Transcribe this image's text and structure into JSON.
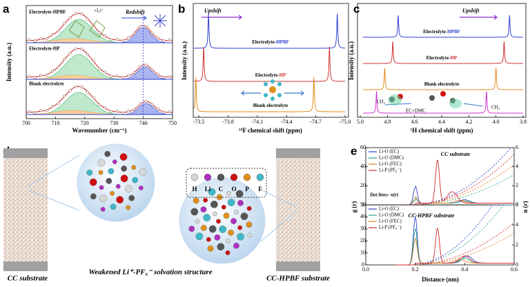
{
  "panel_a": {
    "label": "a",
    "ylabel": "Intensity (a.u.)",
    "xlabel": "Wavenumber (cm⁻¹)",
    "xticks": [
      "700",
      "710",
      "720",
      "730",
      "740",
      "750"
    ],
    "traces": [
      "Electrolyte-HPBF",
      "Electrolyte-HP",
      "Blank electrolyte"
    ],
    "annotation": "Redshift",
    "li_label": "+Li⁺"
  },
  "panel_b": {
    "label": "b",
    "ylabel": "Intensity (a.u.)",
    "xlabel": "¹⁹F chemical shift (ppm)",
    "xticks": [
      "-73.5",
      "-73.8",
      "-74.1",
      "-74.4",
      "-74.7",
      "-75.0"
    ],
    "annotation": "Upshift",
    "traces": [
      {
        "prefix": "Electrolyte-",
        "suffix": "HPBF"
      },
      {
        "prefix": "Electrolyte-",
        "suffix": "HP"
      },
      {
        "prefix": "Blank electrolyte"
      }
    ]
  },
  "panel_c": {
    "label": "c",
    "ylabel": "Intensity (a.u.)",
    "xlabel": "¹H chemical shift (ppm)",
    "xticks": [
      "5.0",
      "4.8",
      "4.6",
      "4.4",
      "4.2",
      "4.0",
      "3.8"
    ],
    "annotation": "Upshift",
    "traces": [
      {
        "prefix": "Electrolyte-",
        "suffix": "HPBF"
      },
      {
        "prefix": "Electrolyte-",
        "suffix": "HP"
      },
      {
        "prefix": "Blank electrolyte"
      }
    ],
    "ch2": "CH₂",
    "ch3": "CH₃",
    "mixture": "EC+DMC"
  },
  "panel_d": {
    "label": "d",
    "left_caption": "CC substrate",
    "right_caption": "CC-HPBF substrate",
    "center_caption": "Weakened Li⁺-PF₆⁻ solvation structure",
    "elements": [
      {
        "symbol": "H",
        "color": "#d8d8d8"
      },
      {
        "symbol": "Li",
        "color": "#b030c0"
      },
      {
        "symbol": "C",
        "color": "#555555"
      },
      {
        "symbol": "O",
        "color": "#d01010"
      },
      {
        "symbol": "P",
        "color": "#e0901a"
      },
      {
        "symbol": "F",
        "color": "#40b8c8"
      }
    ]
  },
  "panel_e": {
    "label": "e",
    "ylabel_left": "g (r)",
    "ylabel_right": "n (r)",
    "xlabel": "Distance (nm)",
    "xticks": [
      "0.0",
      "0.2",
      "0.4",
      "0.6"
    ],
    "legend": [
      {
        "name": "Li-O (EC)",
        "color": "#2b3fd0"
      },
      {
        "name": "Li-O (DMC)",
        "color": "#20a888"
      },
      {
        "name": "Li-O (FEC)",
        "color": "#e07b1a"
      },
      {
        "name": "Li-P (PF₆⁻)",
        "color": "#d02828"
      }
    ],
    "top": {
      "title": "CC substrate",
      "note": "Dot lines- n(r)",
      "yticks_left": [
        "0",
        "20",
        "40",
        "60"
      ],
      "yticks_right": [
        "0",
        "2",
        "4",
        "6"
      ]
    },
    "bottom": {
      "title": "CC-HPBF substrate",
      "yticks_left": [
        "0",
        "10",
        "20",
        "30",
        "40",
        "50"
      ],
      "yticks_right": [
        "0",
        "2",
        "4",
        "6"
      ]
    }
  }
}
